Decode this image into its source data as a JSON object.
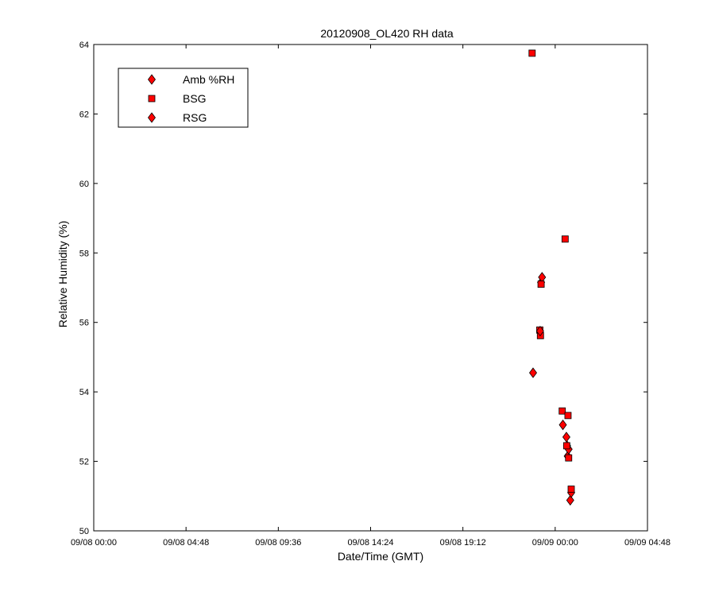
{
  "chart_data": {
    "type": "scatter",
    "title": "20120908_OL420 RH data",
    "xlabel": "Date/Time (GMT)",
    "ylabel": "Relative Humidity (%)",
    "x_axis_kind": "datetime",
    "xlim": [
      "2012-09-08T00:00",
      "2012-09-09T04:48"
    ],
    "ylim": [
      50,
      64
    ],
    "xticks": [
      "2012-09-08T00:00",
      "2012-09-08T04:48",
      "2012-09-08T09:36",
      "2012-09-08T14:24",
      "2012-09-08T19:12",
      "2012-09-09T00:00",
      "2012-09-09T04:48"
    ],
    "xtick_labels": [
      "09/08 00:00",
      "09/08 04:48",
      "09/08 09:36",
      "09/08 14:24",
      "09/08 19:12",
      "09/09 00:00",
      "09/09 04:48"
    ],
    "yticks": [
      50,
      52,
      54,
      56,
      58,
      60,
      62,
      64
    ],
    "ytick_labels": [
      "50",
      "52",
      "54",
      "56",
      "58",
      "60",
      "62",
      "64"
    ],
    "grid": false,
    "legend_position": "top-left",
    "series": [
      {
        "name": "Amb %RH",
        "marker": "diamond",
        "color": "#ff0000",
        "points": [
          {
            "x": "2012-09-08T22:51",
            "y": 54.55
          },
          {
            "x": "2012-09-08T23:16",
            "y": 57.15
          },
          {
            "x": "2012-09-08T23:19",
            "y": 57.3
          },
          {
            "x": "2012-09-09T00:24",
            "y": 53.05
          },
          {
            "x": "2012-09-09T00:35",
            "y": 52.7
          },
          {
            "x": "2012-09-09T00:37",
            "y": 52.45
          },
          {
            "x": "2012-09-09T00:39",
            "y": 52.15
          },
          {
            "x": "2012-09-09T00:42",
            "y": 52.35
          },
          {
            "x": "2012-09-09T00:47",
            "y": 50.88
          },
          {
            "x": "2012-09-09T00:50",
            "y": 51.1
          }
        ]
      },
      {
        "name": "BSG",
        "marker": "square",
        "color": "#ff0000",
        "points": [
          {
            "x": "2012-09-08T22:48",
            "y": 63.75
          },
          {
            "x": "2012-09-08T23:12",
            "y": 55.78
          },
          {
            "x": "2012-09-08T23:14",
            "y": 55.62
          },
          {
            "x": "2012-09-08T23:16",
            "y": 57.1
          },
          {
            "x": "2012-09-09T00:22",
            "y": 53.45
          },
          {
            "x": "2012-09-09T00:31",
            "y": 58.4
          },
          {
            "x": "2012-09-09T00:36",
            "y": 52.45
          },
          {
            "x": "2012-09-09T00:40",
            "y": 53.32
          },
          {
            "x": "2012-09-09T00:42",
            "y": 52.1
          },
          {
            "x": "2012-09-09T00:50",
            "y": 51.2
          }
        ]
      },
      {
        "name": "RSG",
        "marker": "diamond",
        "color": "#ff0000",
        "points": [
          {
            "x": "2012-09-08T23:13",
            "y": 55.75
          }
        ]
      }
    ]
  }
}
